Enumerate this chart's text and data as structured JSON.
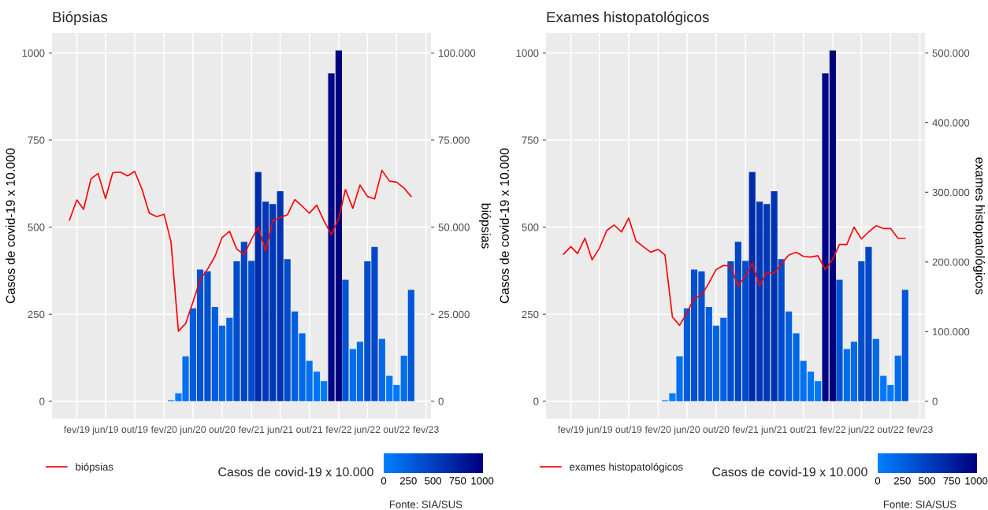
{
  "chart_data": [
    {
      "type": "bar",
      "title": "Biópsias",
      "ylabel": "Casos de covid-19 x 10.000",
      "y2label": "biópsias",
      "clabel": "Casos de covid-19 x 10.000",
      "annotations": [
        "Fonte: SIA/SUS"
      ],
      "legend": "bottom",
      "grid": true,
      "xlim": [
        "2018-10-20",
        "2023-02-22"
      ],
      "xticks": [
        {
          "value": "2019-02",
          "label": "fev/19"
        },
        {
          "value": "2019-06",
          "label": "jun/19"
        },
        {
          "value": "2019-10",
          "label": "out/19"
        },
        {
          "value": "2020-02",
          "label": "fev/20"
        },
        {
          "value": "2020-06",
          "label": "jun/20"
        },
        {
          "value": "2020-10",
          "label": "out/20"
        },
        {
          "value": "2021-02",
          "label": "fev/21"
        },
        {
          "value": "2021-06",
          "label": "jun/21"
        },
        {
          "value": "2021-10",
          "label": "out/21"
        },
        {
          "value": "2022-02",
          "label": "fev/22"
        },
        {
          "value": "2022-06",
          "label": "jun/22"
        },
        {
          "value": "2022-10",
          "label": "out/22"
        },
        {
          "value": "2023-02",
          "label": "fev/23"
        }
      ],
      "ylim": [
        -50,
        1057
      ],
      "yticks": [
        0,
        250,
        500,
        750,
        1000
      ],
      "y2lim": [
        -5000,
        105700
      ],
      "y2ticks": [
        0,
        {
          "value": 25000,
          "label": "25.000"
        },
        {
          "value": 50000,
          "label": "50.000"
        },
        {
          "value": 75000,
          "label": "75.000"
        },
        {
          "value": 100000,
          "label": "100.000"
        }
      ],
      "clim": [
        0,
        1007
      ],
      "cticks": [
        0,
        250,
        500,
        750,
        1000
      ],
      "series": [
        {
          "x": [
            "2020-03",
            "2020-04",
            "2020-05",
            "2020-06",
            "2020-07",
            "2020-08",
            "2020-09",
            "2020-10",
            "2020-11",
            "2020-12",
            "2021-01",
            "2021-02",
            "2021-03",
            "2021-04",
            "2021-05",
            "2021-06",
            "2021-07",
            "2021-08",
            "2021-09",
            "2021-10",
            "2021-11",
            "2021-12",
            "2022-01",
            "2022-02",
            "2022-03",
            "2022-04",
            "2022-05",
            "2022-06",
            "2022-07",
            "2022-08",
            "2022-09",
            "2022-10",
            "2022-11",
            "2022-12"
          ],
          "values": [
            3,
            23,
            129,
            267,
            378,
            373,
            271,
            217,
            240,
            402,
            458,
            403,
            658,
            573,
            566,
            603,
            408,
            258,
            195,
            116,
            85,
            58,
            941,
            1007,
            349,
            150,
            171,
            402,
            443,
            179,
            73,
            47,
            131,
            320
          ],
          "colors": [
            "#0080ff",
            "#007dfc",
            "#006fef",
            "#005edd",
            "#0050cf",
            "#0050d0",
            "#005ddd",
            "#0064e3",
            "#0061e1",
            "#004dcc",
            "#0045c5",
            "#004ccc",
            "#002cab",
            "#0037b6",
            "#0038b7",
            "#0033b2",
            "#004ccb",
            "#005fde",
            "#0067e6",
            "#0071f0",
            "#0075f4",
            "#0079f8",
            "#000887",
            "#00007f",
            "#0053d3",
            "#006dec",
            "#006ae9",
            "#004dcc",
            "#0047c7",
            "#0069e8",
            "#0077f6",
            "#007af9",
            "#006fee",
            "#0057d6"
          ]
        },
        {
          "type": "line",
          "name": "biópsias",
          "color": "#ff0000",
          "axis": "y2",
          "x": [
            "2019-01",
            "2019-02",
            "2019-03",
            "2019-04",
            "2019-05",
            "2019-06",
            "2019-07",
            "2019-08",
            "2019-09",
            "2019-10",
            "2019-11",
            "2019-12",
            "2020-01",
            "2020-02",
            "2020-03",
            "2020-04",
            "2020-05",
            "2020-06",
            "2020-07",
            "2020-08",
            "2020-09",
            "2020-10",
            "2020-11",
            "2020-12",
            "2021-01",
            "2021-02",
            "2021-03",
            "2021-04",
            "2021-05",
            "2021-06",
            "2021-07",
            "2021-08",
            "2021-09",
            "2021-10",
            "2021-11",
            "2021-12",
            "2022-01",
            "2022-02",
            "2022-03",
            "2022-04",
            "2022-05",
            "2022-06",
            "2022-07",
            "2022-08",
            "2022-09",
            "2022-10",
            "2022-11",
            "2022-12"
          ],
          "values": [
            52000,
            57800,
            55100,
            63800,
            65400,
            58200,
            65600,
            65800,
            64700,
            66000,
            60800,
            54000,
            53000,
            53700,
            45800,
            20100,
            22300,
            28500,
            34900,
            37900,
            41600,
            47000,
            48800,
            43700,
            42100,
            46500,
            50100,
            43100,
            51900,
            52800,
            53500,
            57900,
            56000,
            54000,
            56300,
            51800,
            47900,
            52400,
            60800,
            55400,
            62100,
            58800,
            58100,
            66300,
            63200,
            62900,
            61200,
            58800
          ]
        }
      ]
    },
    {
      "type": "bar",
      "title": "Exames histopatológicos",
      "ylabel": "Casos de covid-19 x 10.000",
      "y2label": "exames histopatológicos",
      "clabel": "Casos de covid-19 x 10.000",
      "annotations": [
        "Fonte: SIA/SUS"
      ],
      "legend": "bottom",
      "grid": true,
      "xlim": [
        "2018-10-20",
        "2023-02-22"
      ],
      "xticks": [
        {
          "value": "2019-02",
          "label": "fev/19"
        },
        {
          "value": "2019-06",
          "label": "jun/19"
        },
        {
          "value": "2019-10",
          "label": "out/19"
        },
        {
          "value": "2020-02",
          "label": "fev/20"
        },
        {
          "value": "2020-06",
          "label": "jun/20"
        },
        {
          "value": "2020-10",
          "label": "out/20"
        },
        {
          "value": "2021-02",
          "label": "fev/21"
        },
        {
          "value": "2021-06",
          "label": "jun/21"
        },
        {
          "value": "2021-10",
          "label": "out/21"
        },
        {
          "value": "2022-02",
          "label": "fev/22"
        },
        {
          "value": "2022-06",
          "label": "jun/22"
        },
        {
          "value": "2022-10",
          "label": "out/22"
        },
        {
          "value": "2023-02",
          "label": "fev/23"
        }
      ],
      "ylim": [
        -50,
        1057
      ],
      "yticks": [
        0,
        250,
        500,
        750,
        1000
      ],
      "y2lim": [
        -25000,
        528500
      ],
      "y2ticks": [
        0,
        {
          "value": 100000,
          "label": "100.000"
        },
        {
          "value": 200000,
          "label": "200.000"
        },
        {
          "value": 300000,
          "label": "300.000"
        },
        {
          "value": 400000,
          "label": "400.000"
        },
        {
          "value": 500000,
          "label": "500.000"
        }
      ],
      "clim": [
        0,
        1007
      ],
      "cticks": [
        0,
        250,
        500,
        750,
        1000
      ],
      "series": [
        {
          "x": [
            "2020-03",
            "2020-04",
            "2020-05",
            "2020-06",
            "2020-07",
            "2020-08",
            "2020-09",
            "2020-10",
            "2020-11",
            "2020-12",
            "2021-01",
            "2021-02",
            "2021-03",
            "2021-04",
            "2021-05",
            "2021-06",
            "2021-07",
            "2021-08",
            "2021-09",
            "2021-10",
            "2021-11",
            "2021-12",
            "2022-01",
            "2022-02",
            "2022-03",
            "2022-04",
            "2022-05",
            "2022-06",
            "2022-07",
            "2022-08",
            "2022-09",
            "2022-10",
            "2022-11",
            "2022-12"
          ],
          "values": [
            3,
            23,
            129,
            267,
            378,
            373,
            271,
            217,
            240,
            402,
            458,
            403,
            658,
            573,
            566,
            603,
            408,
            258,
            195,
            116,
            85,
            58,
            941,
            1007,
            349,
            150,
            171,
            402,
            443,
            179,
            73,
            47,
            131,
            320
          ],
          "colors": [
            "#0080ff",
            "#007dfc",
            "#006fef",
            "#005edd",
            "#0050cf",
            "#0050d0",
            "#005ddd",
            "#0064e3",
            "#0061e1",
            "#004dcc",
            "#0045c5",
            "#004ccc",
            "#002cab",
            "#0037b6",
            "#0038b7",
            "#0033b2",
            "#004ccb",
            "#005fde",
            "#0067e6",
            "#0071f0",
            "#0075f4",
            "#0079f8",
            "#000887",
            "#00007f",
            "#0053d3",
            "#006dec",
            "#006ae9",
            "#004dcc",
            "#0047c7",
            "#0069e8",
            "#0077f6",
            "#007af9",
            "#006fee",
            "#0057d6"
          ]
        },
        {
          "type": "line",
          "name": "exames histopatológicos",
          "color": "#ff0000",
          "axis": "y2",
          "x": [
            "2019-01",
            "2019-02",
            "2019-03",
            "2019-04",
            "2019-05",
            "2019-06",
            "2019-07",
            "2019-08",
            "2019-09",
            "2019-10",
            "2019-11",
            "2019-12",
            "2020-01",
            "2020-02",
            "2020-03",
            "2020-04",
            "2020-05",
            "2020-06",
            "2020-07",
            "2020-08",
            "2020-09",
            "2020-10",
            "2020-11",
            "2020-12",
            "2021-01",
            "2021-02",
            "2021-03",
            "2021-04",
            "2021-05",
            "2021-06",
            "2021-07",
            "2021-08",
            "2021-09",
            "2021-10",
            "2021-11",
            "2021-12",
            "2022-01",
            "2022-02",
            "2022-03",
            "2022-04",
            "2022-05",
            "2022-06",
            "2022-07",
            "2022-08",
            "2022-09",
            "2022-10",
            "2022-11",
            "2022-12"
          ],
          "values": [
            211000,
            222000,
            212000,
            234000,
            203000,
            220000,
            245000,
            253000,
            243000,
            263000,
            230000,
            222000,
            214000,
            218000,
            210000,
            121000,
            109000,
            127000,
            148000,
            152000,
            170000,
            189000,
            195000,
            194000,
            165000,
            180000,
            198000,
            166000,
            185000,
            184000,
            197000,
            210000,
            214000,
            208000,
            207000,
            209000,
            189000,
            204000,
            225000,
            225000,
            250000,
            233000,
            243000,
            252000,
            248000,
            248000,
            234000,
            234000
          ]
        }
      ]
    }
  ]
}
